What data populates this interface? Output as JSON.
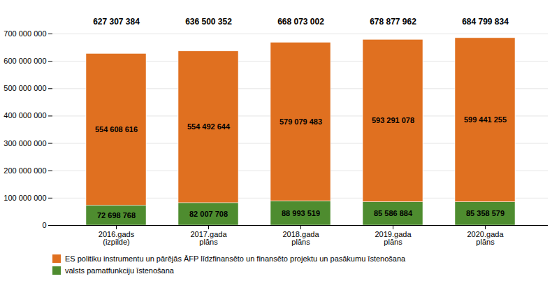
{
  "chart_data": {
    "type": "bar",
    "stacked": true,
    "categories": [
      "2016.gads\n(izpilde)",
      "2017.gada\nplāns",
      "2018.gada\nplāns",
      "2019.gada\nplāns",
      "2020.gada\nplāns"
    ],
    "series": [
      {
        "name": "valsts pamatfunkciju īstenošana",
        "color": "#4e8c2f",
        "values": [
          72698768,
          82007708,
          88993519,
          85586884,
          85358579
        ],
        "value_labels": [
          "72 698 768",
          "82 007 708",
          "88 993 519",
          "85 586 884",
          "85 358 579"
        ]
      },
      {
        "name": "ES politiku instrumentu un pārējās ĀFP līdzfinansēto un finansēto projektu un pasākumu īstenošana",
        "color": "#e07020",
        "values": [
          554608616,
          554492644,
          579079483,
          593291078,
          599441255
        ],
        "value_labels": [
          "554 608 616",
          "554 492 644",
          "579 079 483",
          "593 291 078",
          "599 441 255"
        ]
      }
    ],
    "totals": [
      627307384,
      636500352,
      668073002,
      678877962,
      684799834
    ],
    "totals_labels": [
      "627 307 384",
      "636 500 352",
      "668 073 002",
      "678 877 962",
      "684 799 834"
    ],
    "ylim": [
      0,
      700000000
    ],
    "yticks": [
      0,
      {
        "value": 100000000,
        "label": "100 000 000"
      },
      {
        "value": 200000000,
        "label": "200 000 000"
      },
      {
        "value": 300000000,
        "label": "300 000 000"
      },
      {
        "value": 400000000,
        "label": "400 000 000"
      },
      {
        "value": 500000000,
        "label": "500 000 000"
      },
      {
        "value": 600000000,
        "label": "600 000 000"
      },
      {
        "value": 700000000,
        "label": "700 000 000"
      }
    ],
    "grid": true,
    "data_labels": true,
    "legend": "bottom left"
  }
}
